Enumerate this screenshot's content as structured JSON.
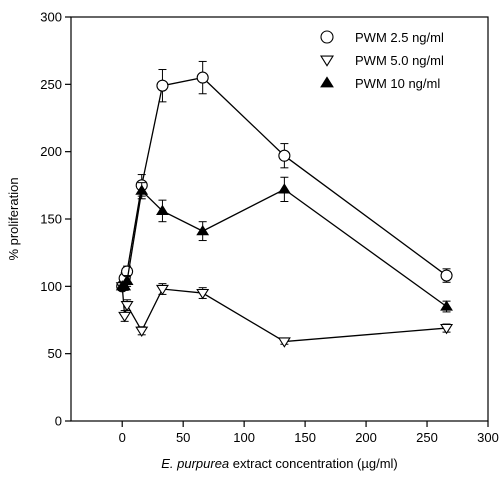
{
  "chart_data": {
    "type": "line",
    "xlabel_italic": "E. purpurea",
    "xlabel_rest": " extract concentration (µg/ml)",
    "ylabel": "% proliferation",
    "xlim": [
      -42,
      300
    ],
    "ylim": [
      0,
      300
    ],
    "xticks": [
      0,
      50,
      100,
      150,
      200,
      250,
      300
    ],
    "yticks": [
      0,
      50,
      100,
      150,
      200,
      250,
      300
    ],
    "grid": false,
    "legend_position": "top-right",
    "series": [
      {
        "name": "PWM 2.5 ng/ml",
        "marker": "circle-open",
        "x": [
          0,
          2,
          4,
          16,
          33,
          66,
          133,
          266
        ],
        "y": [
          100,
          106,
          111,
          175,
          249,
          255,
          197,
          108
        ],
        "err": [
          3,
          4,
          4,
          8,
          12,
          12,
          9,
          5
        ]
      },
      {
        "name": "PWM 5.0 ng/ml",
        "marker": "triangle-down-open",
        "x": [
          0,
          2,
          4,
          16,
          33,
          66,
          133,
          266
        ],
        "y": [
          100,
          78,
          86,
          67,
          98,
          95,
          59,
          69
        ],
        "err": [
          3,
          4,
          4,
          3,
          4,
          4,
          2,
          3
        ]
      },
      {
        "name": "PWM 10 ng/ml",
        "marker": "triangle-up-filled",
        "x": [
          0,
          2,
          4,
          16,
          33,
          66,
          133,
          266
        ],
        "y": [
          100,
          100,
          104,
          171,
          156,
          141,
          172,
          85
        ],
        "err": [
          3,
          3,
          4,
          6,
          8,
          7,
          9,
          4
        ]
      }
    ]
  }
}
